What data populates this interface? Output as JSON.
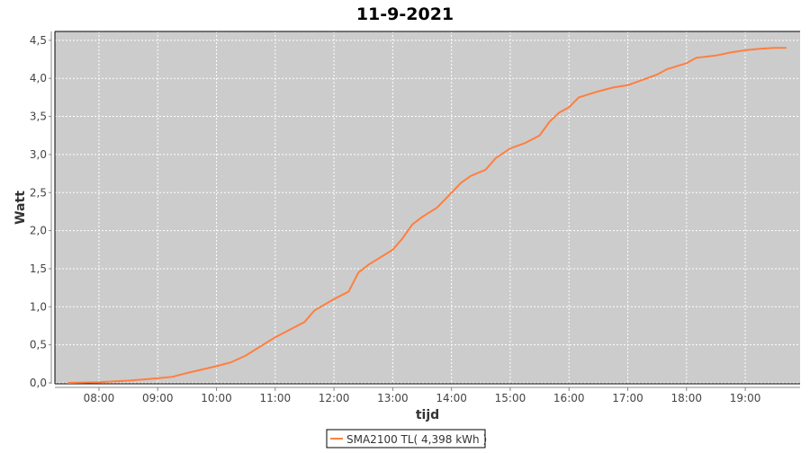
{
  "chart_data": {
    "type": "line",
    "title": "11-9-2021",
    "xlabel": "tijd",
    "ylabel": "Watt",
    "ylim": [
      0,
      4.6
    ],
    "xlim": [
      "07:15",
      "19:56"
    ],
    "yticks": [
      "0,0",
      "0,5",
      "1,0",
      "1,5",
      "2,0",
      "2,5",
      "3,0",
      "3,5",
      "4,0",
      "4,5"
    ],
    "xticks": [
      "08:00",
      "09:00",
      "10:00",
      "11:00",
      "12:00",
      "13:00",
      "14:00",
      "15:00",
      "16:00",
      "17:00",
      "18:00",
      "19:00"
    ],
    "grid": true,
    "legend_position": "bottom",
    "colors": {
      "series": "#ff7f3f",
      "plot_background": "#cccccc",
      "grid": "#ffffff"
    },
    "series": [
      {
        "name": "SMA2100 TL( 4,398 kWh )",
        "x": [
          "07:28",
          "08:00",
          "08:30",
          "09:00",
          "09:15",
          "09:30",
          "10:00",
          "10:15",
          "10:30",
          "11:00",
          "11:15",
          "11:30",
          "11:40",
          "12:00",
          "12:15",
          "12:25",
          "12:35",
          "13:00",
          "13:10",
          "13:20",
          "13:30",
          "13:45",
          "13:55",
          "14:00",
          "14:10",
          "14:20",
          "14:35",
          "14:45",
          "15:00",
          "15:15",
          "15:30",
          "15:40",
          "15:50",
          "16:00",
          "16:10",
          "16:30",
          "16:45",
          "17:00",
          "17:15",
          "17:30",
          "17:40",
          "18:00",
          "18:10",
          "18:30",
          "18:45",
          "19:00",
          "19:15",
          "19:30",
          "19:42"
        ],
        "y": [
          0,
          0.01,
          0.03,
          0.06,
          0.08,
          0.13,
          0.22,
          0.27,
          0.36,
          0.6,
          0.7,
          0.8,
          0.95,
          1.1,
          1.2,
          1.45,
          1.55,
          1.75,
          1.9,
          2.08,
          2.18,
          2.3,
          2.43,
          2.5,
          2.63,
          2.72,
          2.8,
          2.95,
          3.08,
          3.15,
          3.25,
          3.43,
          3.55,
          3.62,
          3.75,
          3.83,
          3.88,
          3.91,
          3.98,
          4.05,
          4.12,
          4.2,
          4.27,
          4.3,
          4.34,
          4.37,
          4.39,
          4.4,
          4.4
        ]
      }
    ]
  }
}
